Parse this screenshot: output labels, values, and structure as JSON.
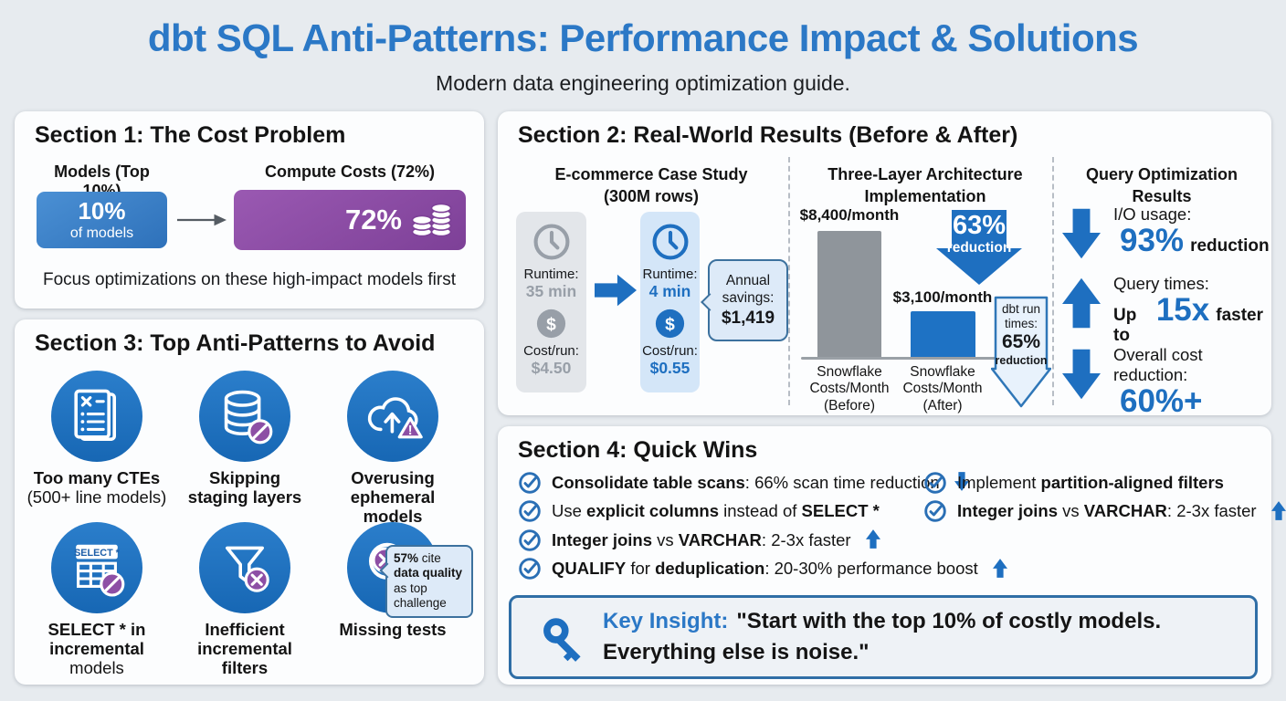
{
  "header": {
    "title": "dbt SQL Anti-Patterns: Performance Impact & Solutions",
    "subtitle": "Modern data engineering optimization guide."
  },
  "section1": {
    "heading": "Section 1: The Cost Problem",
    "models_label": "Models (Top 10%)",
    "costs_label": "Compute Costs (72%)",
    "models_value": "10%",
    "models_caption": "of models",
    "costs_value": "72%",
    "footnote": "Focus optimizations on these high-impact models first"
  },
  "section2": {
    "heading": "Section 2: Real-World Results (Before & After)",
    "case_study": {
      "title1": "E-commerce Case Study",
      "title2": "(300M rows)",
      "before": {
        "runtime_label": "Runtime:",
        "runtime_value": "35 min",
        "cost_label": "Cost/run:",
        "cost_value": "$4.50"
      },
      "after": {
        "runtime_label": "Runtime:",
        "runtime_value": "4 min",
        "cost_label": "Cost/run:",
        "cost_value": "$0.55"
      },
      "savings": {
        "line1": "Annual",
        "line2": "savings:",
        "value": "$1,419"
      }
    },
    "architecture": {
      "title1": "Three-Layer Architecture",
      "title2": "Implementation",
      "before_amount": "$8,400/month",
      "after_amount": "$3,100/month",
      "reduction_big": "63%",
      "reduction_small": "reduction",
      "dbt_line1": "dbt run",
      "dbt_line2": "times:",
      "dbt_value": "65%",
      "dbt_label": "reduction",
      "before_cat1": "Snowflake",
      "before_cat2": "Costs/Month",
      "before_cat3": "(Before)",
      "after_cat1": "Snowflake",
      "after_cat2": "Costs/Month",
      "after_cat3": "(After)"
    },
    "query": {
      "title1": "Query Optimization",
      "title2": "Results",
      "rows": [
        {
          "arrow": "down",
          "label": "I/O usage:",
          "prefix": "",
          "big": "93%",
          "suffix": "reduction"
        },
        {
          "arrow": "up",
          "label": "Query times:",
          "prefix": "Up to",
          "big": "15x",
          "suffix": "faster"
        },
        {
          "arrow": "down",
          "label": "Overall cost reduction:",
          "prefix": "",
          "big": "60%+",
          "suffix": ""
        }
      ]
    }
  },
  "section3": {
    "heading": "Section 3: Top Anti-Patterns to Avoid",
    "items": [
      {
        "icon": "document-x-icon",
        "lines": [
          {
            "t": "Too many CTEs",
            "b": true
          },
          {
            "t": "(500+ line models)",
            "b": false
          }
        ]
      },
      {
        "icon": "database-blocked-icon",
        "lines": [
          {
            "t": "Skipping",
            "b": true
          },
          {
            "t": "staging layers",
            "b": true
          }
        ]
      },
      {
        "icon": "cloud-warning-icon",
        "lines": [
          {
            "t": "Overusing",
            "b": true
          },
          {
            "t": "ephemeral models",
            "b": true
          }
        ]
      },
      {
        "icon": "select-star-blocked-icon",
        "lines": [
          {
            "t": "SELECT * in",
            "b": true
          },
          {
            "t": "incremental",
            "b": true
          },
          {
            "t": "models",
            "b": false
          }
        ]
      },
      {
        "icon": "funnel-x-icon",
        "lines": [
          {
            "t": "Inefficient",
            "b": true
          },
          {
            "t": "incremental",
            "b": true
          },
          {
            "t": "filters",
            "b": true
          }
        ]
      },
      {
        "icon": "magnifier-x-icon",
        "lines": [
          {
            "t": "Missing tests",
            "b": true
          }
        ]
      }
    ],
    "select_star_badge": "SELECT *",
    "stat_callout_parts": [
      {
        "t": "57%",
        "b": true
      },
      {
        "t": " cite ",
        "b": false
      },
      {
        "t": "data quality",
        "b": true
      },
      {
        "t": " as top challenge",
        "b": false
      }
    ]
  },
  "section4": {
    "heading": "Section 4: Quick Wins",
    "left_items": [
      {
        "parts": [
          {
            "t": "Consolidate table scans",
            "b": true
          },
          {
            "t": ": 66% scan time reduction",
            "b": false
          }
        ],
        "arrow": "down"
      },
      {
        "parts": [
          {
            "t": "Use ",
            "b": false
          },
          {
            "t": "explicit columns",
            "b": true
          },
          {
            "t": " instead of ",
            "b": false
          },
          {
            "t": "SELECT *",
            "b": true
          }
        ],
        "arrow": ""
      },
      {
        "parts": [
          {
            "t": "Integer joins",
            "b": true
          },
          {
            "t": " vs ",
            "b": false
          },
          {
            "t": "VARCHAR",
            "b": true
          },
          {
            "t": ": 2-3x faster",
            "b": false
          }
        ],
        "arrow": "up"
      },
      {
        "parts": [
          {
            "t": "QUALIFY",
            "b": true
          },
          {
            "t": " for ",
            "b": false
          },
          {
            "t": "deduplication",
            "b": true
          },
          {
            "t": ": 20-30% performance boost",
            "b": false
          }
        ],
        "arrow": "up"
      }
    ],
    "right_items": [
      {
        "parts": [
          {
            "t": "Implement ",
            "b": false
          },
          {
            "t": "partition-aligned filters",
            "b": true
          }
        ],
        "arrow": ""
      },
      {
        "parts": [
          {
            "t": "Integer joins",
            "b": true
          },
          {
            "t": " vs ",
            "b": false
          },
          {
            "t": "VARCHAR",
            "b": true
          },
          {
            "t": ": 2-3x faster",
            "b": false
          }
        ],
        "arrow": "up"
      }
    ]
  },
  "key_insight": {
    "label": "Key Insight:",
    "quote": "\"Start with the top 10% of costly models. Everything else is noise.\""
  },
  "chart_data": {
    "type": "bar",
    "title": "Three-Layer Architecture Implementation",
    "categories": [
      "Snowflake Costs/Month (Before)",
      "Snowflake Costs/Month (After)"
    ],
    "values": [
      8400,
      3100
    ],
    "unit": "USD/month",
    "bar_colors": [
      "#8f959b",
      "#1e72c4"
    ],
    "annotations": [
      "63% reduction",
      "dbt run times: 65% reduction"
    ]
  },
  "colors": {
    "accent_blue": "#1e6fc0",
    "title_blue": "#2b78c6",
    "accent_purple": "#8d4fa5",
    "background": "#e7ebef"
  }
}
